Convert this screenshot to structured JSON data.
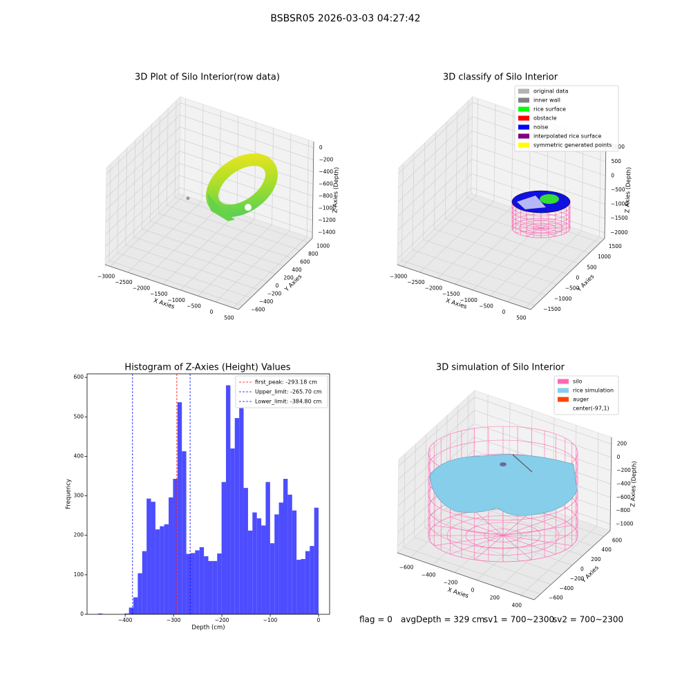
{
  "title": "BSBSR05 2026-03-03 04:27:42",
  "chart_data": [
    {
      "type": "scatter3d",
      "title": "3D Plot of Silo Interior(row data)",
      "xlabel": "X Axies",
      "ylabel": "Y Axies",
      "zlabel": "Z Axies (Depth)",
      "xlim": [
        -3150,
        650
      ],
      "ylim": [
        -700,
        1100
      ],
      "zlim": [
        -1500,
        100
      ],
      "xticks": [
        {
          "value": -3000,
          "label": "−3000"
        },
        {
          "value": -2500,
          "label": "−2500"
        },
        {
          "value": -2000,
          "label": "−2000"
        },
        {
          "value": -1500,
          "label": "−1500"
        },
        {
          "value": -1000,
          "label": "−1000"
        },
        {
          "value": -500,
          "label": "−500"
        },
        0,
        500
      ],
      "yticks": [
        {
          "value": -600,
          "label": "−600"
        },
        {
          "value": -400,
          "label": "−400"
        },
        {
          "value": -200,
          "label": "−200"
        },
        0,
        200,
        400,
        600,
        800,
        1000
      ],
      "zticks": [
        {
          "value": -1400,
          "label": "−1400"
        },
        {
          "value": -1200,
          "label": "−1200"
        },
        {
          "value": -1000,
          "label": "−1000"
        },
        {
          "value": -800,
          "label": "−800"
        },
        {
          "value": -600,
          "label": "−600"
        },
        {
          "value": -400,
          "label": "−400"
        },
        {
          "value": -200,
          "label": "−200"
        },
        0
      ]
    },
    {
      "type": "scatter3d",
      "title": "3D classify of Silo Interior",
      "xlabel": "X Axies",
      "ylabel": "Y Axies",
      "zlabel": "Z Axies (Depth)",
      "xlim": [
        -3150,
        650
      ],
      "ylim": [
        -1700,
        1700
      ],
      "zlim": [
        -2200,
        1200
      ],
      "xticks": [
        {
          "value": -3000,
          "label": "−3000"
        },
        {
          "value": -2500,
          "label": "−2500"
        },
        {
          "value": -2000,
          "label": "−2000"
        },
        {
          "value": -1500,
          "label": "−1500"
        },
        {
          "value": -1000,
          "label": "−1000"
        },
        {
          "value": -500,
          "label": "−500"
        },
        0,
        500
      ],
      "yticks": [
        {
          "value": -1500,
          "label": "−1500"
        },
        {
          "value": -1000,
          "label": "−1000"
        },
        {
          "value": -500,
          "label": "−500"
        },
        0,
        500,
        1000,
        1500
      ],
      "zticks": [
        {
          "value": -2000,
          "label": "−2000"
        },
        {
          "value": -1500,
          "label": "−1500"
        },
        {
          "value": -1000,
          "label": "−1000"
        },
        {
          "value": -500,
          "label": "−500"
        },
        0,
        500,
        1000
      ],
      "legend": "upper right",
      "series": [
        {
          "name": "original data",
          "color": "#b3b3b3"
        },
        {
          "name": "inner wall",
          "color": "#808080"
        },
        {
          "name": "rice surface",
          "color": "#00ff00"
        },
        {
          "name": "obstacle",
          "color": "#ff0000"
        },
        {
          "name": "noise",
          "color": "#0000ff"
        },
        {
          "name": "interpolated rice surface",
          "color": "#800080"
        },
        {
          "name": "symmetric generated points",
          "color": "#ffff00"
        }
      ]
    },
    {
      "type": "histogram",
      "title": "Histogram of Z-Axies (Height) Values",
      "xlabel": "Depth (cm)",
      "ylabel": "Frequency",
      "color": "#4d4dff",
      "bins": [
        -456,
        -446.88,
        -437.76,
        -428.64,
        -419.52,
        -410.4,
        -401.28,
        -392.16,
        -383.04,
        -373.92,
        -364.8,
        -355.68,
        -346.56,
        -337.44,
        -328.32,
        -319.2,
        -310.08,
        -300.96,
        -291.84,
        -282.72,
        -273.6,
        -264.48,
        -255.36,
        -246.24,
        -237.12,
        -228,
        -218.88,
        -209.76,
        -200.64,
        -191.52,
        -182.4,
        -173.28,
        -164.16,
        -155.04,
        -145.92,
        -136.8,
        -127.68,
        -118.56,
        -109.44,
        -100.32,
        -91.2,
        -82.08,
        -72.96,
        -63.84,
        -54.72,
        -45.6,
        -36.48,
        -27.36,
        -18.24,
        -9.12,
        0
      ],
      "counts": [
        2,
        0,
        0,
        0,
        0,
        0,
        2,
        17,
        43,
        104,
        160,
        293,
        285,
        215,
        223,
        228,
        296,
        343,
        537,
        413,
        153,
        155,
        162,
        170,
        147,
        135,
        135,
        154,
        335,
        580,
        420,
        497,
        522,
        320,
        212,
        258,
        243,
        225,
        335,
        180,
        253,
        283,
        343,
        303,
        263,
        138,
        140,
        160,
        173,
        270
      ],
      "xlim": [
        -478.8,
        22.8
      ],
      "ylim": [
        0,
        609
      ],
      "xticks": [
        {
          "value": -400,
          "label": "−400"
        },
        {
          "value": -300,
          "label": "−300"
        },
        {
          "value": -200,
          "label": "−200"
        },
        {
          "value": -100,
          "label": "−100"
        },
        0
      ],
      "yticks": [
        0,
        100,
        200,
        300,
        400,
        500,
        600
      ],
      "legend": "upper right",
      "vlines": [
        {
          "label": "first_peak: -293.18 cm",
          "value": -293.18,
          "color": "#ff0000"
        },
        {
          "label": "Upper_limit: -265.70 cm",
          "value": -265.7,
          "color": "#0000ff"
        },
        {
          "label": "Lower_limit: -384.80 cm",
          "value": -384.8,
          "color": "#0000ff"
        }
      ]
    },
    {
      "type": "surface3d",
      "title": "3D simulation of Silo Interior",
      "xlabel": "X Axies",
      "ylabel": "Y Axies",
      "zlabel": "Z Axies (Depth)",
      "xlim": [
        -720,
        520
      ],
      "ylim": [
        -720,
        720
      ],
      "zlim": [
        -1100,
        300
      ],
      "xticks": [
        {
          "value": -600,
          "label": "−600"
        },
        {
          "value": -400,
          "label": "−400"
        },
        {
          "value": -200,
          "label": "−200"
        },
        0,
        200,
        400
      ],
      "yticks": [
        {
          "value": -600,
          "label": "−600"
        },
        {
          "value": -400,
          "label": "−400"
        },
        {
          "value": -200,
          "label": "−200"
        },
        0,
        200,
        400,
        600
      ],
      "zticks": [
        {
          "value": -1000,
          "label": "−1000"
        },
        {
          "value": -800,
          "label": "−800"
        },
        {
          "value": -600,
          "label": "−600"
        },
        {
          "value": -400,
          "label": "−400"
        },
        {
          "value": -200,
          "label": "−200"
        },
        0,
        200
      ],
      "legend": "upper right",
      "series": [
        {
          "name": "silo",
          "color": "#ff69b4"
        },
        {
          "name": "rice simulation",
          "color": "#87ceeb"
        },
        {
          "name": "auger",
          "color": "#ff4500"
        },
        {
          "name": "center(-97,1)",
          "color": "#ffffff"
        }
      ]
    }
  ],
  "footer": [
    "flag = 0",
    "avgDepth = 329 cm",
    "sv1 = 700~2300",
    "sv2 = 700~2300"
  ]
}
